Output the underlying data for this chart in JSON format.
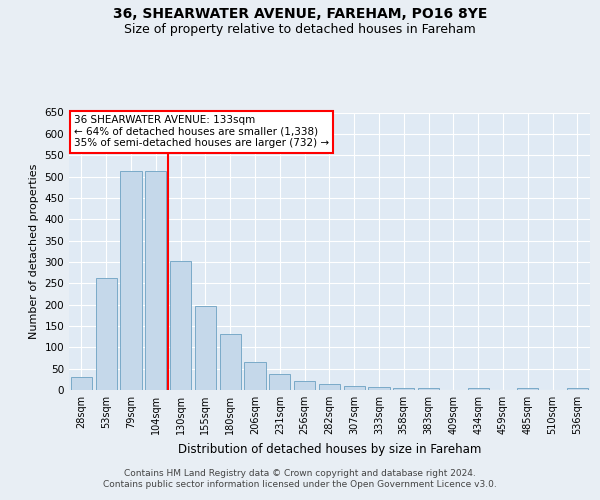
{
  "title1": "36, SHEARWATER AVENUE, FAREHAM, PO16 8YE",
  "title2": "Size of property relative to detached houses in Fareham",
  "xlabel": "Distribution of detached houses by size in Fareham",
  "ylabel": "Number of detached properties",
  "categories": [
    "28sqm",
    "53sqm",
    "79sqm",
    "104sqm",
    "130sqm",
    "155sqm",
    "180sqm",
    "206sqm",
    "231sqm",
    "256sqm",
    "282sqm",
    "307sqm",
    "333sqm",
    "358sqm",
    "383sqm",
    "409sqm",
    "434sqm",
    "459sqm",
    "485sqm",
    "510sqm",
    "536sqm"
  ],
  "values": [
    30,
    263,
    513,
    512,
    302,
    196,
    132,
    65,
    37,
    22,
    15,
    9,
    7,
    5,
    5,
    0,
    5,
    0,
    5,
    0,
    5
  ],
  "bar_color": "#c5d8ea",
  "bar_edge_color": "#7aaac8",
  "annotation_text": "36 SHEARWATER AVENUE: 133sqm\n← 64% of detached houses are smaller (1,338)\n35% of semi-detached houses are larger (732) →",
  "vline_color": "red",
  "ylim": [
    0,
    650
  ],
  "yticks": [
    0,
    50,
    100,
    150,
    200,
    250,
    300,
    350,
    400,
    450,
    500,
    550,
    600,
    650
  ],
  "footer1": "Contains HM Land Registry data © Crown copyright and database right 2024.",
  "footer2": "Contains public sector information licensed under the Open Government Licence v3.0.",
  "bg_color": "#e8eef4",
  "plot_bg_color": "#e0eaf4",
  "grid_color": "#ffffff",
  "title1_fontsize": 10,
  "title2_fontsize": 9,
  "ylabel_fontsize": 8,
  "xlabel_fontsize": 8.5,
  "tick_fontsize": 7.5,
  "xtick_fontsize": 7,
  "annotation_fontsize": 7.5,
  "footer_fontsize": 6.5
}
